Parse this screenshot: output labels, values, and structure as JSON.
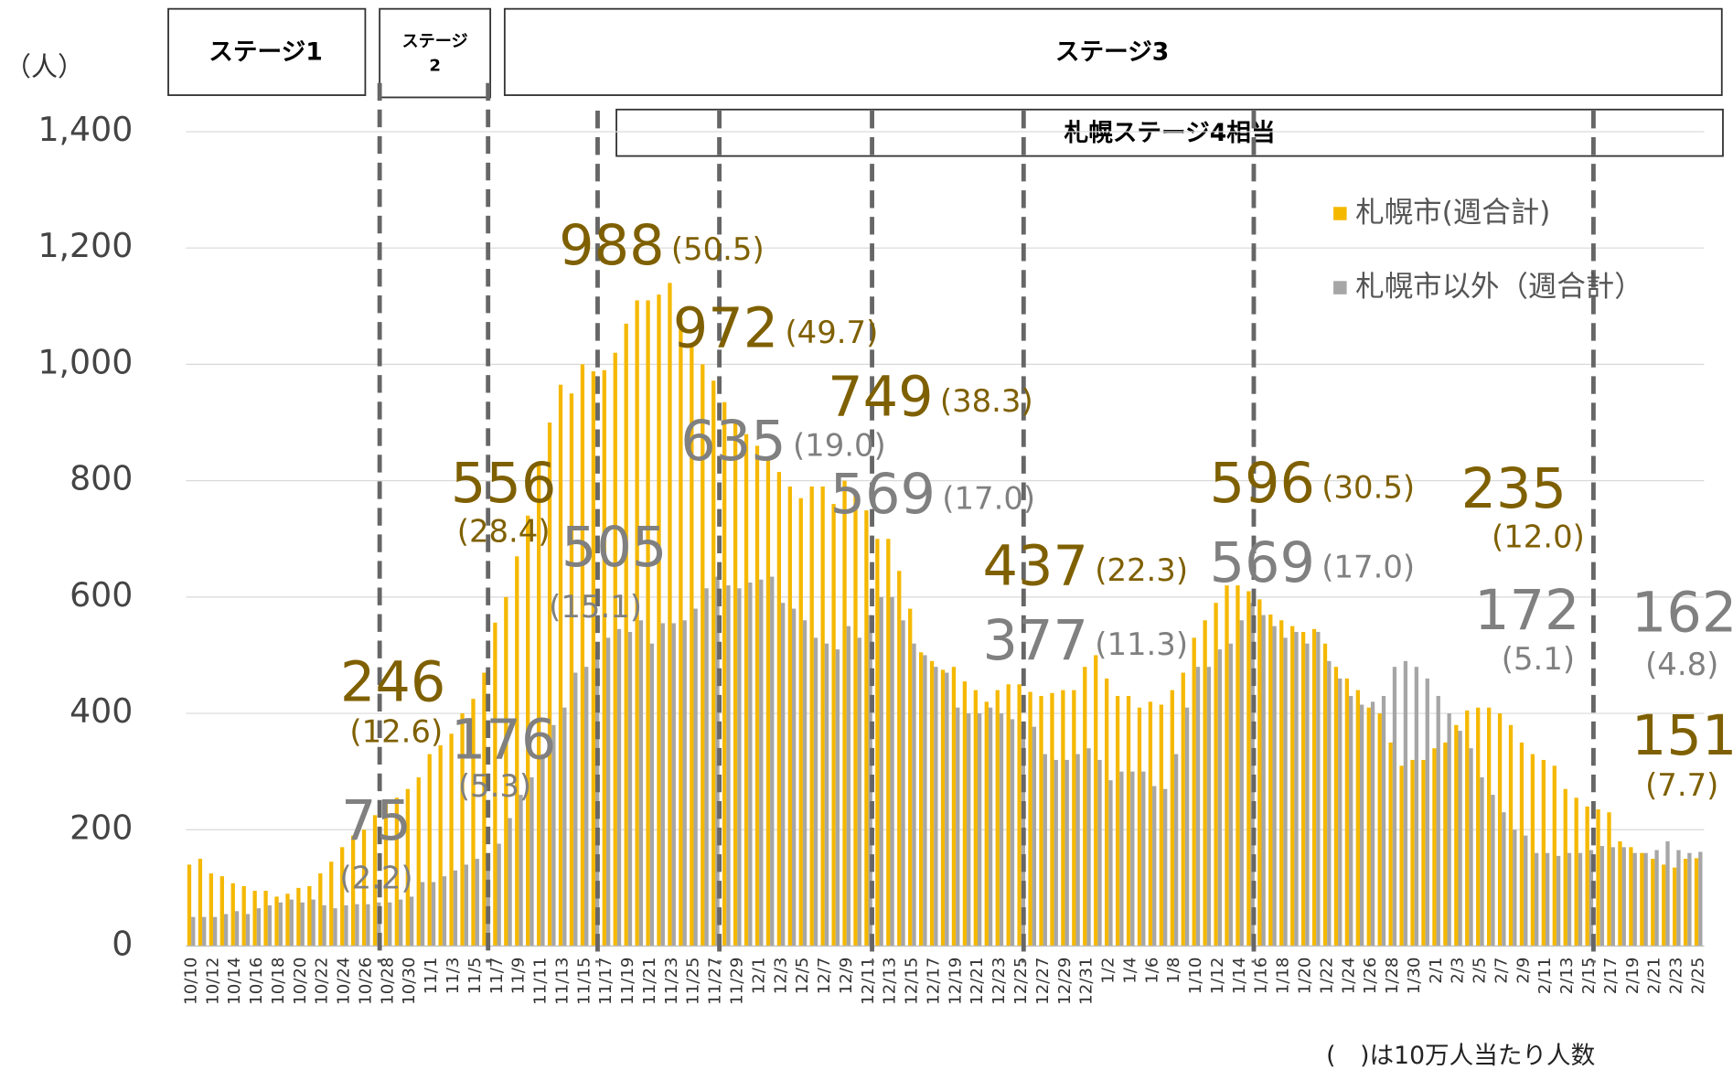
{
  "chart_data": {
    "type": "bar",
    "y_unit": "（人）",
    "footnote": "(　)は10万人当たり人数",
    "stages": [
      "ステージ1",
      "ステージ",
      "2",
      "ステージ3",
      "札幌ステージ4相当"
    ],
    "categories": [
      "10/10",
      null,
      "10/12",
      null,
      "10/14",
      null,
      "10/16",
      null,
      "10/18",
      null,
      "10/20",
      null,
      "10/22",
      null,
      "10/24",
      null,
      "10/26",
      null,
      "10/28",
      null,
      "10/30",
      null,
      "11/1",
      null,
      "11/3",
      null,
      "11/5",
      null,
      "11/7",
      null,
      "11/9",
      null,
      "11/11",
      null,
      "11/13",
      null,
      "11/15",
      null,
      "11/17",
      null,
      "11/19",
      null,
      "11/21",
      null,
      "11/23",
      null,
      "11/25",
      null,
      "11/27",
      null,
      "11/29",
      null,
      "12/1",
      null,
      "12/3",
      null,
      "12/5",
      null,
      "12/7",
      null,
      "12/9",
      null,
      "12/11",
      null,
      "12/13",
      null,
      "12/15",
      null,
      "12/17",
      null,
      "12/19",
      null,
      "12/21",
      null,
      "12/23",
      null,
      "12/25",
      null,
      "12/27",
      null,
      "12/29",
      null,
      "12/31",
      null,
      "1/2",
      null,
      "1/4",
      null,
      "1/6",
      null,
      "1/8",
      null,
      "1/10",
      null,
      "1/12",
      null,
      "1/14",
      null,
      "1/16",
      null,
      "1/18",
      null,
      "1/20",
      null,
      "1/22",
      null,
      "1/24",
      null,
      "1/26",
      null,
      "1/28",
      null,
      "1/30",
      null,
      "2/1",
      null,
      "2/3",
      null,
      "2/5",
      null,
      "2/7",
      null,
      "2/9",
      null,
      "2/11",
      null,
      "2/13",
      null,
      "2/15",
      null,
      "2/17",
      null,
      "2/19",
      null,
      "2/21",
      null,
      "2/23",
      null,
      "2/25"
    ],
    "series": [
      {
        "name": "札幌市(週合計)",
        "color": "#f5b800",
        "values": [
          140,
          150,
          125,
          120,
          108,
          103,
          95,
          95,
          85,
          90,
          100,
          103,
          125,
          145,
          170,
          190,
          200,
          225,
          246,
          255,
          270,
          290,
          330,
          345,
          365,
          400,
          425,
          470,
          556,
          600,
          670,
          740,
          830,
          900,
          965,
          950,
          1000,
          988,
          990,
          1020,
          1070,
          1110,
          1110,
          1120,
          1140,
          1080,
          1030,
          1000,
          972,
          935,
          900,
          880,
          860,
          840,
          815,
          790,
          770,
          790,
          790,
          760,
          800,
          780,
          749,
          700,
          700,
          645,
          580,
          505,
          490,
          475,
          480,
          455,
          440,
          420,
          440,
          450,
          450,
          437,
          430,
          435,
          440,
          440,
          480,
          500,
          460,
          430,
          430,
          410,
          420,
          415,
          440,
          470,
          530,
          560,
          590,
          620,
          620,
          610,
          596,
          570,
          560,
          550,
          540,
          545,
          520,
          480,
          460,
          440,
          410,
          400,
          350,
          310,
          320,
          320,
          340,
          350,
          380,
          405,
          410,
          410,
          400,
          380,
          350,
          330,
          320,
          310,
          270,
          255,
          240,
          235,
          230,
          180,
          170,
          160,
          150,
          140,
          135,
          150,
          151
        ]
      },
      {
        "name": "札幌市以外（週合計）",
        "color": "#a6a6a6",
        "values": [
          50,
          50,
          50,
          55,
          60,
          55,
          65,
          70,
          75,
          80,
          75,
          80,
          70,
          65,
          70,
          72,
          72,
          75,
          75,
          80,
          85,
          110,
          110,
          120,
          130,
          140,
          150,
          160,
          176,
          220,
          260,
          290,
          330,
          380,
          410,
          470,
          480,
          505,
          530,
          545,
          540,
          560,
          520,
          555,
          555,
          560,
          580,
          615,
          635,
          620,
          615,
          625,
          630,
          635,
          590,
          580,
          560,
          530,
          520,
          510,
          550,
          530,
          569,
          600,
          600,
          560,
          520,
          500,
          480,
          470,
          410,
          400,
          400,
          410,
          400,
          390,
          380,
          377,
          330,
          320,
          320,
          330,
          340,
          320,
          285,
          300,
          300,
          300,
          275,
          270,
          330,
          410,
          480,
          480,
          510,
          520,
          560,
          590,
          569,
          550,
          530,
          540,
          520,
          540,
          490,
          460,
          430,
          415,
          420,
          430,
          480,
          490,
          480,
          460,
          430,
          400,
          370,
          340,
          290,
          260,
          230,
          200,
          190,
          160,
          160,
          155,
          160,
          160,
          165,
          172,
          170,
          170,
          160,
          160,
          165,
          180,
          165,
          160,
          162
        ]
      }
    ],
    "ylim": [
      0,
      1400
    ],
    "yticks": [
      0,
      200,
      400,
      600,
      800,
      {
        "value": 1000,
        "label": "1,000"
      },
      {
        "value": 1200,
        "label": "1,200"
      },
      {
        "value": 1400,
        "label": "1,400"
      }
    ],
    "grid": true,
    "annotations": [
      {
        "text": "988",
        "sub": "(50.5)",
        "series": 0
      },
      {
        "text": "972",
        "sub": "(49.7)",
        "series": 0
      },
      {
        "text": "749",
        "sub": "(38.3)",
        "series": 0
      },
      {
        "text": "635",
        "sub": "(19.0)",
        "series": 1
      },
      {
        "text": "569",
        "sub": "(17.0)",
        "series": 1
      },
      {
        "text": "556",
        "sub": "(28.4)",
        "series": 0
      },
      {
        "text": "505",
        "sub": "(15.1)",
        "series": 1
      },
      {
        "text": "246",
        "sub": "(12.6)",
        "series": 0
      },
      {
        "text": "176",
        "sub": "(5.3)",
        "series": 1
      },
      {
        "text": "75",
        "sub": "(2.2)",
        "series": 1
      },
      {
        "text": "437",
        "sub": "(22.3)",
        "series": 0
      },
      {
        "text": "377",
        "sub": "(11.3)",
        "series": 1
      },
      {
        "text": "596",
        "sub": "(30.5)",
        "series": 0
      },
      {
        "text": "569",
        "sub": "(17.0)",
        "series": 1
      },
      {
        "text": "235",
        "sub": "(12.0)",
        "series": 0
      },
      {
        "text": "172",
        "sub": "(5.1)",
        "series": 1
      },
      {
        "text": "162",
        "sub": "(4.8)",
        "series": 1
      },
      {
        "text": "151",
        "sub": "(7.7)",
        "series": 0
      }
    ]
  }
}
